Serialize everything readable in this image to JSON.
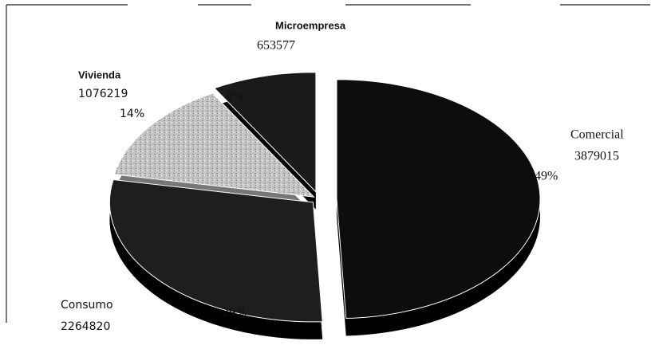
{
  "chart_data": {
    "type": "pie",
    "categories": [
      "Comercial",
      "Consumo",
      "Vivienda",
      "Microempresa"
    ],
    "values": [
      3879015,
      2264820,
      1076219,
      653577
    ],
    "percent_labels": [
      "49%",
      "29%",
      "14%",
      "8%"
    ],
    "colors": [
      "#0d0d0d",
      "#1e1e1e",
      "#bdbdbd",
      "#1a1a1a"
    ]
  }
}
